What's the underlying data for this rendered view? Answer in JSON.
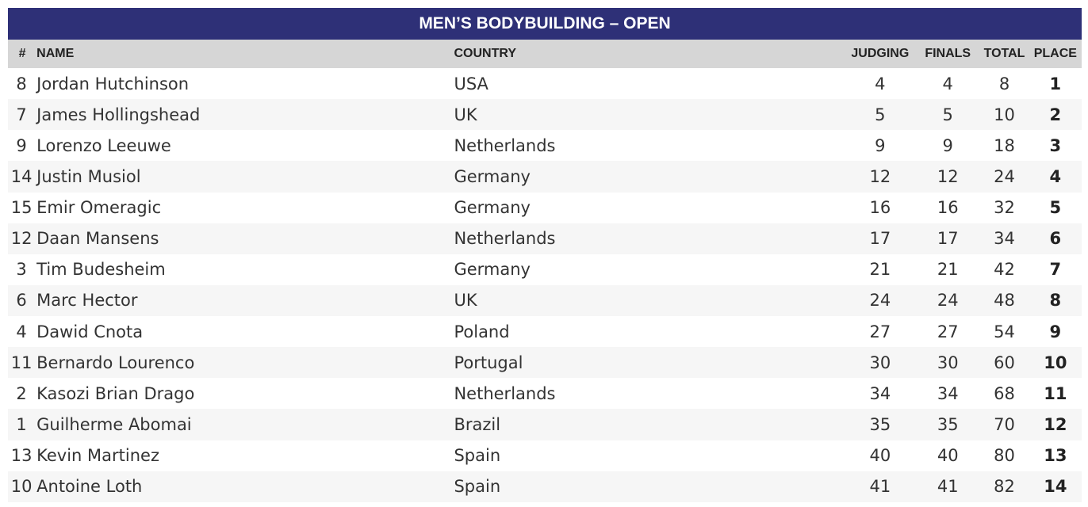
{
  "title": "MEN’S BODYBUILDING – OPEN",
  "columns": {
    "num": "#",
    "name": "NAME",
    "country": "COUNTRY",
    "judging": "JUDGING",
    "finals": "FINALS",
    "total": "TOTAL",
    "place": "PLACE"
  },
  "rows": [
    {
      "num": "8",
      "name": "Jordan Hutchinson",
      "country": "USA",
      "judging": "4",
      "finals": "4",
      "total": "8",
      "place": "1"
    },
    {
      "num": "7",
      "name": "James Hollingshead",
      "country": "UK",
      "judging": "5",
      "finals": "5",
      "total": "10",
      "place": "2"
    },
    {
      "num": "9",
      "name": "Lorenzo Leeuwe",
      "country": "Netherlands",
      "judging": "9",
      "finals": "9",
      "total": "18",
      "place": "3"
    },
    {
      "num": "14",
      "name": "Justin Musiol",
      "country": "Germany",
      "judging": "12",
      "finals": "12",
      "total": "24",
      "place": "4"
    },
    {
      "num": "15",
      "name": "Emir Omeragic",
      "country": "Germany",
      "judging": "16",
      "finals": "16",
      "total": "32",
      "place": "5"
    },
    {
      "num": "12",
      "name": "Daan Mansens",
      "country": "Netherlands",
      "judging": "17",
      "finals": "17",
      "total": "34",
      "place": "6"
    },
    {
      "num": "3",
      "name": "Tim Budesheim",
      "country": "Germany",
      "judging": "21",
      "finals": "21",
      "total": "42",
      "place": "7"
    },
    {
      "num": "6",
      "name": "Marc Hector",
      "country": "UK",
      "judging": "24",
      "finals": "24",
      "total": "48",
      "place": "8"
    },
    {
      "num": "4",
      "name": "Dawid Cnota",
      "country": "Poland",
      "judging": "27",
      "finals": "27",
      "total": "54",
      "place": "9"
    },
    {
      "num": "11",
      "name": "Bernardo Lourenco",
      "country": "Portugal",
      "judging": "30",
      "finals": "30",
      "total": "60",
      "place": "10"
    },
    {
      "num": "2",
      "name": "Kasozi Brian Drago",
      "country": "Netherlands",
      "judging": "34",
      "finals": "34",
      "total": "68",
      "place": "11"
    },
    {
      "num": "1",
      "name": "Guilherme Abomai",
      "country": "Brazil",
      "judging": "35",
      "finals": "35",
      "total": "70",
      "place": "12"
    },
    {
      "num": "13",
      "name": "Kevin Martinez",
      "country": "Spain",
      "judging": "40",
      "finals": "40",
      "total": "80",
      "place": "13"
    },
    {
      "num": "10",
      "name": "Antoine Loth",
      "country": "Spain",
      "judging": "41",
      "finals": "41",
      "total": "82",
      "place": "14"
    }
  ],
  "colors": {
    "title_background": "#2e3077",
    "header_background": "#d6d6d6",
    "row_stripe": "#f6f6f6"
  }
}
